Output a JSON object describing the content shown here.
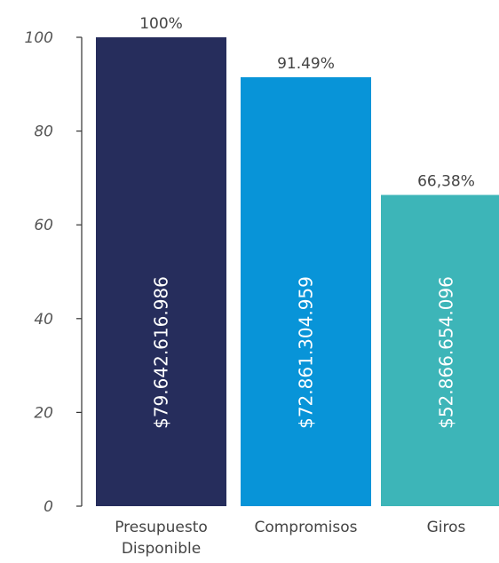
{
  "chart_data": {
    "type": "bar",
    "categories": [
      [
        "Presupuesto",
        "Disponible"
      ],
      [
        "Compromisos"
      ],
      [
        "Giros"
      ]
    ],
    "values": [
      100,
      91.49,
      66.38
    ],
    "percent_labels": [
      "100%",
      "91.49%",
      "66,38%"
    ],
    "amount_labels": [
      "$79.642.616.986",
      "$72.861.304.959",
      "$52.866.654.096"
    ],
    "colors": [
      "#262d5c",
      "#0894d8",
      "#3db5b8"
    ],
    "ylim": [
      0,
      100
    ],
    "yticks": [
      0,
      20,
      40,
      60,
      80,
      100
    ],
    "title": "",
    "xlabel": "",
    "ylabel": "",
    "grid": false,
    "legend": "none"
  }
}
